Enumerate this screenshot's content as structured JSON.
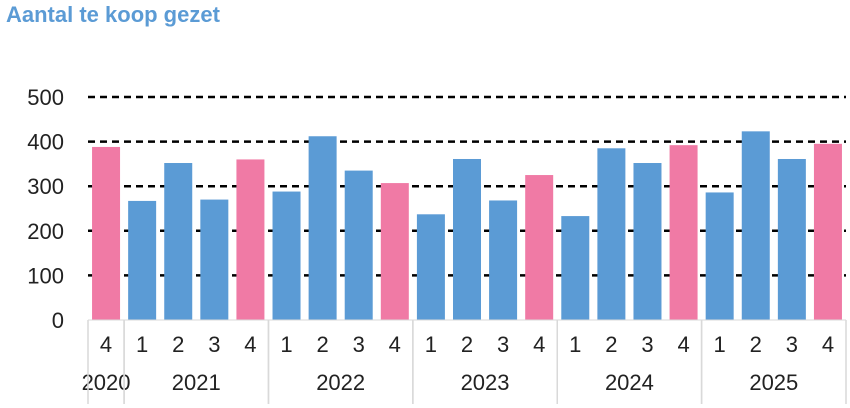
{
  "chart_data": {
    "type": "bar",
    "title": "Aantal te koop gezet",
    "xlabel": "",
    "ylabel": "",
    "ylim": [
      0,
      500
    ],
    "yticks": [
      0,
      100,
      200,
      300,
      400,
      500
    ],
    "grid": true,
    "categories": [
      {
        "year": "2020",
        "quarter": "4",
        "value": 388
      },
      {
        "year": "2021",
        "quarter": "1",
        "value": 267
      },
      {
        "year": "2021",
        "quarter": "2",
        "value": 352
      },
      {
        "year": "2021",
        "quarter": "3",
        "value": 270
      },
      {
        "year": "2021",
        "quarter": "4",
        "value": 360
      },
      {
        "year": "2022",
        "quarter": "1",
        "value": 288
      },
      {
        "year": "2022",
        "quarter": "2",
        "value": 412
      },
      {
        "year": "2022",
        "quarter": "3",
        "value": 335
      },
      {
        "year": "2022",
        "quarter": "4",
        "value": 307
      },
      {
        "year": "2023",
        "quarter": "1",
        "value": 237
      },
      {
        "year": "2023",
        "quarter": "2",
        "value": 361
      },
      {
        "year": "2023",
        "quarter": "3",
        "value": 268
      },
      {
        "year": "2023",
        "quarter": "4",
        "value": 325
      },
      {
        "year": "2024",
        "quarter": "1",
        "value": 233
      },
      {
        "year": "2024",
        "quarter": "2",
        "value": 385
      },
      {
        "year": "2024",
        "quarter": "3",
        "value": 352
      },
      {
        "year": "2024",
        "quarter": "4",
        "value": 392
      },
      {
        "year": "2025",
        "quarter": "1",
        "value": 286
      },
      {
        "year": "2025",
        "quarter": "2",
        "value": 423
      },
      {
        "year": "2025",
        "quarter": "3",
        "value": 361
      },
      {
        "year": "2025",
        "quarter": "4",
        "value": 395
      }
    ],
    "years": [
      "2020",
      "2021",
      "2022",
      "2023",
      "2024",
      "2025"
    ],
    "colors": {
      "default": "#5b9bd5",
      "q4": "#f07aa5",
      "grid": "#000000",
      "axis_line": "#d9d9d9"
    }
  }
}
